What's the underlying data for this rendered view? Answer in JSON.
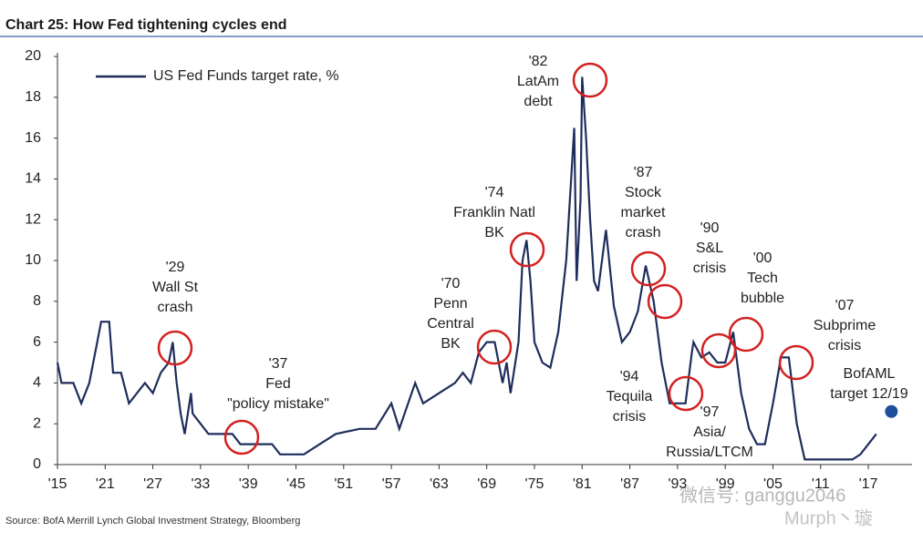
{
  "chart_data": {
    "type": "line",
    "title": "Chart 25: How Fed tightening cycles end",
    "source": "Source: BofA Merrill Lynch Global Investment Strategy, Bloomberg",
    "watermark": [
      "微信号: ganggu2046",
      "Murph丶璇"
    ],
    "series": [
      {
        "name": "US Fed Funds target rate, %",
        "color": "#1f2d5c",
        "x": [
          1915,
          1915.5,
          1917,
          1918,
          1919,
          1920,
          1920.5,
          1921.5,
          1922,
          1923,
          1924,
          1925,
          1926,
          1927,
          1928,
          1929,
          1929.5,
          1930,
          1930.5,
          1931,
          1931.8,
          1932,
          1933,
          1934,
          1937,
          1938,
          1942,
          1943,
          1946,
          1948,
          1950,
          1953,
          1955,
          1957,
          1958,
          1960,
          1961,
          1963,
          1965,
          1966,
          1967,
          1968,
          1969,
          1970,
          1971,
          1971.5,
          1972,
          1973,
          1973.5,
          1974,
          1974.5,
          1975,
          1976,
          1977,
          1978,
          1979,
          1980,
          1980.3,
          1980.8,
          1981,
          1981.5,
          1982,
          1982.5,
          1983,
          1984,
          1985,
          1986,
          1987,
          1988,
          1989,
          1990,
          1991,
          1992,
          1994,
          1994.8,
          1995,
          1996,
          1997,
          1998,
          1999,
          2000,
          2001,
          2002,
          2003,
          2004,
          2005,
          2006,
          2007,
          2008,
          2009,
          2015,
          2016,
          2017,
          2018
        ],
        "values": [
          5,
          4,
          4,
          3,
          4,
          6,
          7,
          7,
          4.5,
          4.5,
          3,
          3.5,
          4,
          3.5,
          4.5,
          5,
          6,
          4,
          2.5,
          1.5,
          3.5,
          2.5,
          2,
          1.5,
          1.5,
          1,
          1,
          0.5,
          0.5,
          1,
          1.5,
          1.75,
          1.75,
          3,
          1.75,
          4,
          3,
          3.5,
          4,
          4.5,
          4,
          5.5,
          6,
          6,
          4,
          5,
          3.5,
          6,
          10,
          11,
          9,
          6,
          5,
          4.75,
          6.5,
          10,
          16.5,
          9,
          13,
          19,
          16,
          12,
          9,
          8.5,
          11.5,
          7.75,
          6,
          6.5,
          7.5,
          9.75,
          8,
          5,
          3,
          3,
          5.5,
          6,
          5.25,
          5.5,
          5,
          5,
          6.5,
          3.5,
          1.75,
          1,
          1,
          3,
          5.25,
          5.25,
          2,
          0.25,
          0.25,
          0.5,
          1,
          1.5
        ]
      }
    ],
    "forecast": {
      "label": [
        "BofAML",
        "target 12/19"
      ],
      "x": 2019.9,
      "value": 2.6,
      "color": "#1f4e9c"
    },
    "annotations": [
      [
        "'29",
        "Wall St",
        "crash"
      ],
      [
        "'37",
        "Fed",
        "\"policy mistake\""
      ],
      [
        "'70",
        "Penn",
        "Central",
        "BK"
      ],
      [
        "'74",
        "Franklin Natl",
        "BK"
      ],
      [
        "'82",
        "LatAm",
        "debt"
      ],
      [
        "'87",
        "Stock",
        "market",
        "crash"
      ],
      [
        "'90",
        "S&L",
        "crisis"
      ],
      [
        "'00",
        "Tech",
        "bubble"
      ],
      [
        "'07",
        "Subprime",
        "crisis"
      ],
      [
        "'94",
        "Tequila",
        "crisis"
      ],
      [
        "'97",
        "Asia/",
        "Russia/LTCM"
      ]
    ],
    "xlim": [
      1915,
      2022.5
    ],
    "ylim": [
      0,
      20
    ],
    "xticks": [
      {
        "value": 1915,
        "label": "'15"
      },
      {
        "value": 1921,
        "label": "'21"
      },
      {
        "value": 1927,
        "label": "'27"
      },
      {
        "value": 1933,
        "label": "'33"
      },
      {
        "value": 1939,
        "label": "'39"
      },
      {
        "value": 1945,
        "label": "'45"
      },
      {
        "value": 1951,
        "label": "'51"
      },
      {
        "value": 1957,
        "label": "'57"
      },
      {
        "value": 1963,
        "label": "'63"
      },
      {
        "value": 1969,
        "label": "'69"
      },
      {
        "value": 1975,
        "label": "'75"
      },
      {
        "value": 1981,
        "label": "'81"
      },
      {
        "value": 1987,
        "label": "'87"
      },
      {
        "value": 1993,
        "label": "'93"
      },
      {
        "value": 1999,
        "label": "'99"
      },
      {
        "value": 2005,
        "label": "'05"
      },
      {
        "value": 2011,
        "label": "'11"
      },
      {
        "value": 2017,
        "label": "'17"
      }
    ],
    "yticks": [
      0,
      2,
      4,
      6,
      8,
      10,
      12,
      14,
      16,
      18,
      20
    ]
  }
}
